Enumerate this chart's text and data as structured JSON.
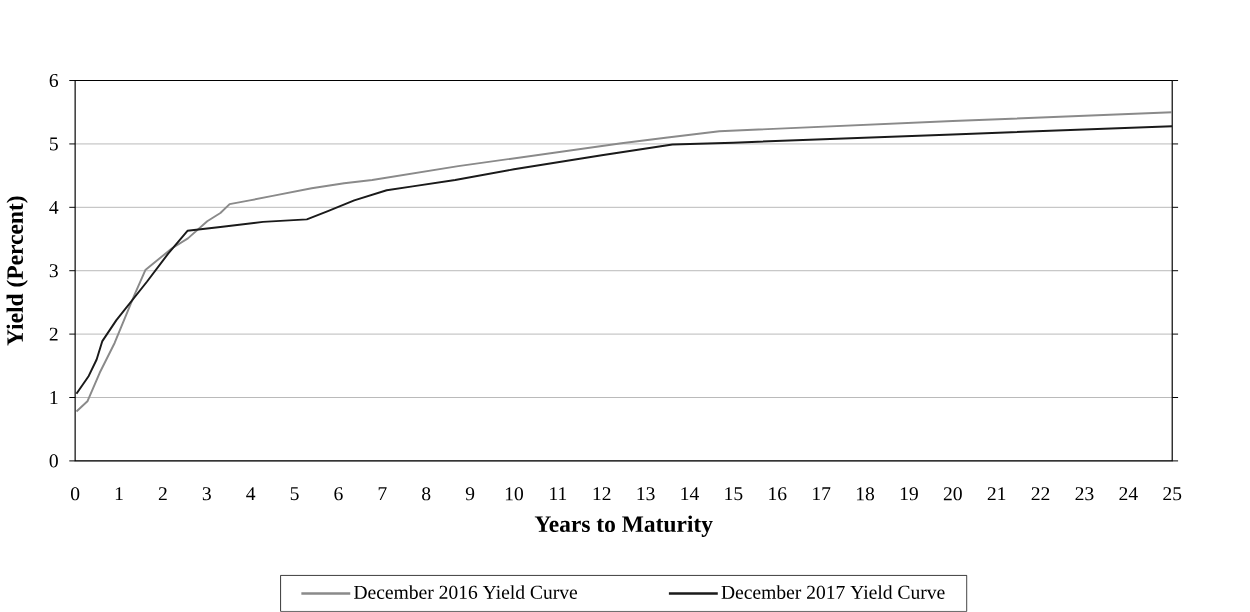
{
  "chart_data": {
    "type": "line",
    "xlabel": "Years to Maturity",
    "ylabel": "Yield (Percent)",
    "xlim": [
      0,
      25
    ],
    "xticks": [
      0,
      1,
      2,
      3,
      4,
      5,
      6,
      7,
      8,
      9,
      10,
      11,
      12,
      13,
      14,
      15,
      16,
      17,
      18,
      19,
      20,
      21,
      22,
      23,
      24,
      25
    ],
    "ylim": [
      0,
      6
    ],
    "yticks": [
      0,
      1,
      2,
      3,
      4,
      5,
      6
    ],
    "grid": "y",
    "legend": "bottom",
    "marker": "none",
    "line_style": "solid",
    "series": [
      {
        "name": "December 2016 Yield Curve",
        "color": "#8a8a8a",
        "x": [
          0.03,
          0.28,
          0.56,
          0.9,
          1.34,
          1.6,
          1.83,
          2.2,
          2.57,
          3.01,
          3.31,
          3.52,
          3.98,
          4.5,
          5.39,
          6.13,
          6.77,
          8.73,
          12.45,
          13.5,
          14.68,
          20,
          25
        ],
        "values": [
          0.78,
          0.94,
          1.39,
          1.86,
          2.6,
          3.01,
          3.14,
          3.35,
          3.51,
          3.78,
          3.91,
          4.05,
          4.11,
          4.18,
          4.3,
          4.38,
          4.43,
          4.65,
          5.01,
          5.1,
          5.2,
          5.36,
          5.5
        ]
      },
      {
        "name": "December 2017 Yield Curve",
        "color": "#1a1a1a",
        "x": [
          0.03,
          0.31,
          0.49,
          0.62,
          0.94,
          1.64,
          2.12,
          2.56,
          3.31,
          4.28,
          5.28,
          5.76,
          6.36,
          7.1,
          7.69,
          8.66,
          10,
          12,
          13.61,
          15,
          20,
          25
        ],
        "values": [
          1.06,
          1.34,
          1.6,
          1.89,
          2.22,
          2.83,
          3.27,
          3.63,
          3.69,
          3.77,
          3.81,
          3.94,
          4.11,
          4.27,
          4.33,
          4.43,
          4.6,
          4.82,
          4.99,
          5.02,
          5.15,
          5.28
        ]
      }
    ]
  }
}
